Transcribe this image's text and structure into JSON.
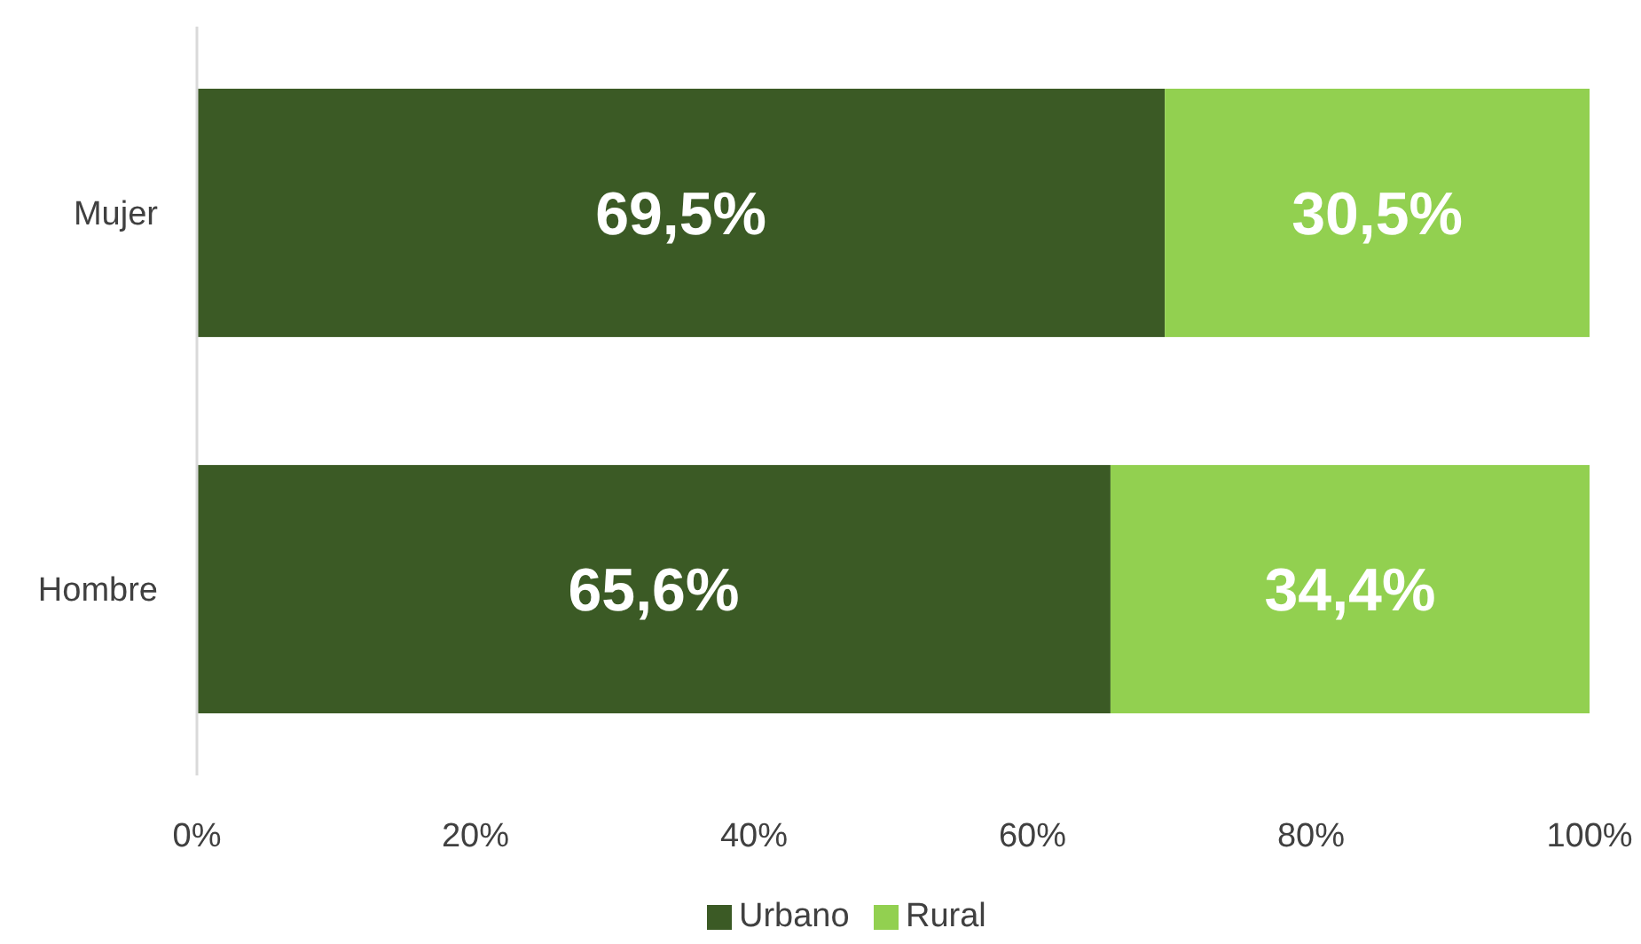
{
  "chart_data": {
    "type": "bar",
    "orientation": "horizontal",
    "stacked": true,
    "categories": [
      "Mujer",
      "Hombre"
    ],
    "series": [
      {
        "name": "Urbano",
        "color": "#3b5a25",
        "values": [
          69.5,
          65.6
        ],
        "value_labels": [
          "69,5%",
          "65,6%"
        ]
      },
      {
        "name": "Rural",
        "color": "#92d050",
        "values": [
          30.5,
          34.4
        ],
        "value_labels": [
          "30,5%",
          "34,4%"
        ]
      }
    ],
    "xlim": [
      0,
      100
    ],
    "xticks": [
      {
        "value": 0,
        "label": "0%"
      },
      {
        "value": 20,
        "label": "20%"
      },
      {
        "value": 40,
        "label": "40%"
      },
      {
        "value": 60,
        "label": "60%"
      },
      {
        "value": 80,
        "label": "80%"
      },
      {
        "value": 100,
        "label": "100%"
      }
    ],
    "grid": false,
    "legend": "bottom"
  }
}
